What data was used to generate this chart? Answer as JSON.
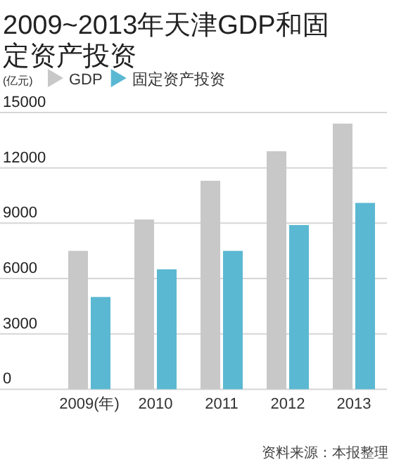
{
  "chart_data": {
    "type": "bar",
    "title": "2009~2013年天津GDP和固定资产投资",
    "ylabel": "(亿元)",
    "categories": [
      "2009(年)",
      "2010",
      "2011",
      "2012",
      "2013"
    ],
    "series": [
      {
        "name": "GDP",
        "color": "#c8c8c8",
        "values": [
          7500,
          9200,
          11300,
          12900,
          14400
        ]
      },
      {
        "name": "固定资产投资",
        "color": "#5bb8d2",
        "values": [
          5000,
          6500,
          7500,
          8900,
          10100
        ]
      }
    ],
    "ylim": [
      0,
      15000
    ],
    "yticks": [
      0,
      3000,
      6000,
      9000,
      12000,
      15000
    ],
    "grid": "y",
    "legend": "top left",
    "annotations": [
      "资料来源：本报整理"
    ]
  }
}
